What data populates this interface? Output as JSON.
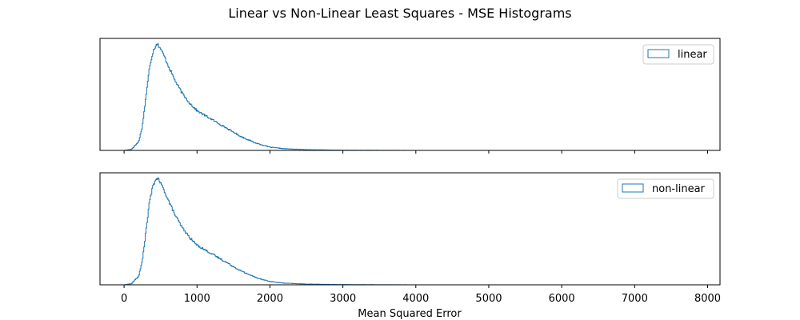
{
  "chart_data": {
    "title": "Linear vs Non-Linear Least Squares - MSE Histograms",
    "xlabel": "Mean Squared Error",
    "xlim": [
      -330,
      8170
    ],
    "x_ticks": [
      0,
      1000,
      2000,
      3000,
      4000,
      5000,
      6000,
      7000,
      8000
    ],
    "x_tick_labels": [
      "0",
      "1000",
      "2000",
      "3000",
      "4000",
      "5000",
      "6000",
      "7000",
      "8000"
    ],
    "y_ticks_visible": false,
    "grid": false,
    "color": "#1f77b4",
    "histograms": [
      {
        "type": "step-histogram",
        "name": "linear",
        "legend_position": "upper right",
        "x_min": 0,
        "x_max": 7800,
        "relative_density": [
          [
            0,
            0.0
          ],
          [
            100,
            0.01
          ],
          [
            200,
            0.08
          ],
          [
            250,
            0.22
          ],
          [
            300,
            0.5
          ],
          [
            350,
            0.78
          ],
          [
            400,
            0.93
          ],
          [
            450,
            1.0
          ],
          [
            500,
            0.95
          ],
          [
            550,
            0.88
          ],
          [
            600,
            0.8
          ],
          [
            700,
            0.65
          ],
          [
            800,
            0.53
          ],
          [
            900,
            0.44
          ],
          [
            1000,
            0.37
          ],
          [
            1200,
            0.29
          ],
          [
            1400,
            0.21
          ],
          [
            1600,
            0.13
          ],
          [
            1800,
            0.07
          ],
          [
            2000,
            0.03
          ],
          [
            2200,
            0.015
          ],
          [
            2500,
            0.007
          ],
          [
            3000,
            0.002
          ],
          [
            3500,
            0.001
          ],
          [
            4000,
            0.0
          ],
          [
            7800,
            0.0
          ]
        ]
      },
      {
        "type": "step-histogram",
        "name": "non-linear",
        "legend_position": "upper right",
        "x_min": 0,
        "x_max": 7350,
        "relative_density": [
          [
            0,
            0.0
          ],
          [
            100,
            0.01
          ],
          [
            200,
            0.08
          ],
          [
            250,
            0.22
          ],
          [
            300,
            0.5
          ],
          [
            350,
            0.78
          ],
          [
            400,
            0.93
          ],
          [
            450,
            1.0
          ],
          [
            500,
            0.95
          ],
          [
            550,
            0.88
          ],
          [
            600,
            0.8
          ],
          [
            700,
            0.65
          ],
          [
            800,
            0.53
          ],
          [
            900,
            0.44
          ],
          [
            1000,
            0.37
          ],
          [
            1200,
            0.29
          ],
          [
            1400,
            0.21
          ],
          [
            1600,
            0.13
          ],
          [
            1800,
            0.07
          ],
          [
            2000,
            0.03
          ],
          [
            2200,
            0.015
          ],
          [
            2500,
            0.007
          ],
          [
            3000,
            0.002
          ],
          [
            3500,
            0.001
          ],
          [
            4000,
            0.0
          ],
          [
            7350,
            0.0
          ]
        ]
      }
    ]
  }
}
